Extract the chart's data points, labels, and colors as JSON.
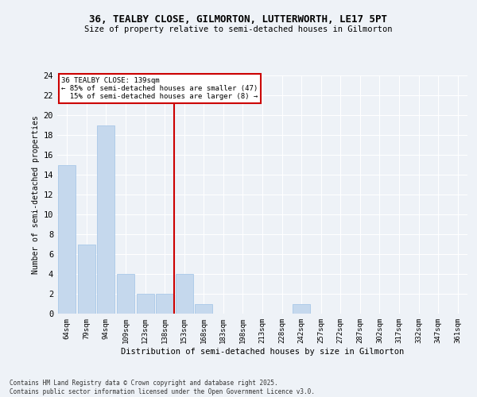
{
  "title1": "36, TEALBY CLOSE, GILMORTON, LUTTERWORTH, LE17 5PT",
  "title2": "Size of property relative to semi-detached houses in Gilmorton",
  "xlabel": "Distribution of semi-detached houses by size in Gilmorton",
  "ylabel": "Number of semi-detached properties",
  "categories": [
    "64sqm",
    "79sqm",
    "94sqm",
    "109sqm",
    "123sqm",
    "138sqm",
    "153sqm",
    "168sqm",
    "183sqm",
    "198sqm",
    "213sqm",
    "228sqm",
    "242sqm",
    "257sqm",
    "272sqm",
    "287sqm",
    "302sqm",
    "317sqm",
    "332sqm",
    "347sqm",
    "361sqm"
  ],
  "values": [
    15,
    7,
    19,
    4,
    2,
    2,
    4,
    1,
    0,
    0,
    0,
    0,
    1,
    0,
    0,
    0,
    0,
    0,
    0,
    0,
    0
  ],
  "bar_color": "#c5d8ed",
  "bar_edge_color": "#a8c8e8",
  "vline_color": "#cc0000",
  "annotation_text": "36 TEALBY CLOSE: 139sqm\n← 85% of semi-detached houses are smaller (47)\n  15% of semi-detached houses are larger (8) →",
  "annotation_box_color": "#ffffff",
  "annotation_box_edge_color": "#cc0000",
  "ylim": [
    0,
    24
  ],
  "yticks": [
    0,
    2,
    4,
    6,
    8,
    10,
    12,
    14,
    16,
    18,
    20,
    22,
    24
  ],
  "footer_text": "Contains HM Land Registry data © Crown copyright and database right 2025.\nContains public sector information licensed under the Open Government Licence v3.0.",
  "bg_color": "#eef2f7",
  "plot_bg_color": "#eef2f7",
  "grid_color": "#ffffff"
}
